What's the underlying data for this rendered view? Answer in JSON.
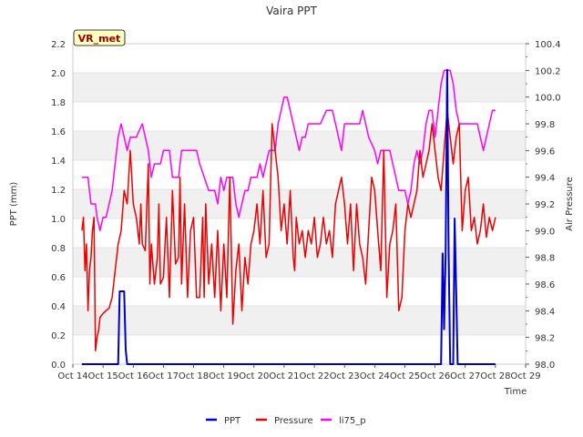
{
  "chart_data": {
    "type": "line",
    "title": "Vaira PPT",
    "badge": "VR_met",
    "xlabel": "Time",
    "ylabel_left": "PPT (mm)",
    "ylabel_right": "Air Pressure",
    "x_ticks": [
      "Oct 14",
      "Oct 15",
      "Oct 16",
      "Oct 17",
      "Oct 18",
      "Oct 19",
      "Oct 20",
      "Oct 21",
      "Oct 22",
      "Oct 23",
      "Oct 24",
      "Oct 25",
      "Oct 26",
      "Oct 27",
      "Oct 28",
      "Oct 29"
    ],
    "x_range_days": [
      0,
      15
    ],
    "left_ylim": [
      0.0,
      2.2
    ],
    "left_ticks": [
      "0.0",
      "0.2",
      "0.4",
      "0.6",
      "0.8",
      "1.0",
      "1.2",
      "1.4",
      "1.6",
      "1.8",
      "2.0",
      "2.2"
    ],
    "right_ylim": [
      98.0,
      100.4
    ],
    "right_ticks": [
      "98.0",
      "98.2",
      "98.4",
      "98.6",
      "98.8",
      "99.0",
      "99.2",
      "99.4",
      "99.6",
      "99.8",
      "100.0",
      "100.2",
      "100.4"
    ],
    "legend": [
      "PPT",
      "Pressure",
      "li75_p"
    ],
    "colors": {
      "PPT": "#0000cc",
      "Pressure": "#ee0000",
      "li75_p": "#ff00ff",
      "band": "#f0f0f0",
      "grid": "#dddddd",
      "badge_fill": "#ffffc0",
      "badge_text": "#990000"
    },
    "series": [
      {
        "name": "PPT",
        "axis": "left",
        "x": [
          0.3,
          1.5,
          1.55,
          1.6,
          1.65,
          1.7,
          1.75,
          1.8,
          12.2,
          12.25,
          12.3,
          12.35,
          12.4,
          12.45,
          12.5,
          12.6,
          12.65,
          12.7,
          12.75,
          14.0
        ],
        "values": [
          0,
          0,
          0.5,
          0.5,
          0.5,
          0.5,
          0.1,
          0,
          0,
          0.76,
          0.24,
          0.76,
          2.02,
          0.76,
          0,
          0,
          1.0,
          0.5,
          0,
          0
        ]
      },
      {
        "name": "Pressure",
        "axis": "right",
        "x": [
          0.3,
          0.35,
          0.4,
          0.45,
          0.5,
          0.55,
          0.6,
          0.65,
          0.7,
          0.75,
          0.8,
          0.85,
          0.9,
          1.0,
          1.1,
          1.2,
          1.3,
          1.4,
          1.5,
          1.55,
          1.6,
          1.7,
          1.8,
          1.9,
          2.0,
          2.1,
          2.2,
          2.25,
          2.3,
          2.4,
          2.5,
          2.55,
          2.6,
          2.7,
          2.8,
          2.85,
          2.9,
          3.0,
          3.1,
          3.2,
          3.3,
          3.4,
          3.5,
          3.55,
          3.6,
          3.7,
          3.8,
          3.9,
          4.0,
          4.1,
          4.2,
          4.3,
          4.35,
          4.4,
          4.5,
          4.6,
          4.7,
          4.8,
          4.9,
          5.0,
          5.1,
          5.2,
          5.3,
          5.4,
          5.5,
          5.6,
          5.7,
          5.8,
          5.9,
          6.0,
          6.1,
          6.2,
          6.3,
          6.4,
          6.5,
          6.6,
          6.7,
          6.8,
          6.9,
          7.0,
          7.1,
          7.2,
          7.3,
          7.35,
          7.4,
          7.5,
          7.6,
          7.7,
          7.8,
          7.9,
          8.0,
          8.1,
          8.2,
          8.3,
          8.4,
          8.5,
          8.6,
          8.7,
          8.8,
          8.9,
          9.0,
          9.1,
          9.2,
          9.3,
          9.4,
          9.5,
          9.6,
          9.7,
          9.8,
          9.9,
          10.0,
          10.1,
          10.2,
          10.3,
          10.4,
          10.5,
          10.6,
          10.7,
          10.8,
          10.9,
          11.0,
          11.1,
          11.2,
          11.3,
          11.4,
          11.5,
          11.6,
          11.7,
          11.8,
          11.9,
          12.0,
          12.1,
          12.2,
          12.3,
          12.4,
          12.5,
          12.6,
          12.7,
          12.8,
          12.9,
          13.0,
          13.1,
          13.2,
          13.3,
          13.4,
          13.5,
          13.6,
          13.7,
          13.8,
          13.9,
          14.0
        ],
        "values": [
          99.0,
          99.1,
          98.7,
          98.9,
          98.4,
          98.7,
          98.8,
          99.0,
          99.1,
          98.1,
          98.2,
          98.25,
          98.35,
          98.38,
          98.4,
          98.42,
          98.5,
          98.7,
          98.9,
          98.95,
          99.0,
          99.3,
          99.2,
          99.6,
          99.2,
          99.1,
          98.9,
          99.2,
          98.9,
          98.85,
          99.5,
          98.6,
          98.9,
          98.6,
          98.8,
          99.2,
          98.6,
          98.65,
          99.1,
          98.5,
          99.3,
          98.75,
          98.8,
          99.4,
          98.6,
          99.2,
          98.5,
          99.0,
          99.1,
          98.5,
          98.5,
          99.1,
          98.5,
          99.2,
          98.6,
          98.9,
          98.5,
          99.0,
          98.4,
          98.9,
          98.5,
          99.4,
          98.3,
          98.7,
          98.9,
          98.4,
          98.8,
          98.6,
          98.9,
          99.0,
          99.2,
          98.9,
          99.3,
          98.8,
          98.9,
          99.8,
          99.6,
          99.4,
          99.0,
          99.2,
          98.9,
          99.3,
          98.8,
          98.7,
          99.1,
          98.9,
          99.0,
          98.8,
          99.0,
          98.9,
          99.1,
          98.8,
          98.9,
          99.1,
          98.9,
          99.0,
          98.8,
          99.2,
          99.3,
          99.4,
          99.2,
          98.9,
          99.2,
          98.7,
          99.2,
          98.9,
          98.8,
          98.6,
          99.0,
          99.4,
          99.3,
          99.0,
          98.7,
          99.6,
          98.5,
          98.9,
          99.0,
          99.2,
          98.4,
          98.5,
          99.0,
          99.2,
          99.1,
          99.2,
          99.3,
          99.6,
          99.4,
          99.5,
          99.6,
          99.8,
          99.6,
          99.4,
          99.3,
          99.6,
          99.9,
          99.7,
          99.5,
          99.7,
          99.8,
          99.0,
          99.3,
          99.4,
          99.0,
          99.1,
          98.9,
          99.0,
          99.2,
          98.95,
          99.1,
          99.0,
          99.1
        ],
        "note": "Values read approximately from the noisy trace."
      },
      {
        "name": "li75_p",
        "axis": "right",
        "x": [
          0.3,
          0.5,
          0.55,
          0.6,
          0.75,
          0.8,
          0.9,
          1.0,
          1.1,
          1.2,
          1.3,
          1.4,
          1.5,
          1.6,
          1.7,
          1.8,
          1.9,
          2.0,
          2.05,
          2.1,
          2.3,
          2.5,
          2.6,
          2.7,
          2.8,
          2.9,
          3.0,
          3.2,
          3.3,
          3.5,
          3.6,
          3.8,
          3.9,
          4.0,
          4.1,
          4.2,
          4.5,
          4.7,
          4.8,
          4.9,
          5.0,
          5.1,
          5.2,
          5.3,
          5.4,
          5.5,
          5.6,
          5.7,
          5.8,
          5.9,
          6.0,
          6.1,
          6.2,
          6.3,
          6.5,
          6.7,
          6.8,
          6.9,
          7.0,
          7.1,
          7.2,
          7.3,
          7.4,
          7.5,
          7.6,
          7.7,
          7.8,
          7.9,
          8.0,
          8.2,
          8.4,
          8.6,
          8.7,
          8.8,
          8.9,
          9.0,
          9.2,
          9.5,
          9.6,
          9.7,
          9.8,
          10.0,
          10.1,
          10.2,
          10.3,
          10.5,
          10.6,
          10.7,
          10.8,
          11.0,
          11.1,
          11.2,
          11.3,
          11.4,
          11.5,
          11.6,
          11.7,
          11.8,
          11.9,
          12.0,
          12.1,
          12.2,
          12.3,
          12.4,
          12.5,
          12.6,
          12.7,
          12.8,
          12.9,
          13.0,
          13.1,
          13.2,
          13.3,
          13.4,
          13.5,
          13.6,
          13.7,
          13.8,
          13.9,
          14.0
        ],
        "values": [
          99.4,
          99.4,
          99.3,
          99.2,
          99.2,
          99.1,
          99.0,
          99.1,
          99.1,
          99.2,
          99.3,
          99.5,
          99.7,
          99.8,
          99.7,
          99.6,
          99.7,
          99.7,
          99.7,
          99.7,
          99.8,
          99.6,
          99.4,
          99.5,
          99.5,
          99.5,
          99.6,
          99.6,
          99.4,
          99.4,
          99.6,
          99.6,
          99.6,
          99.6,
          99.6,
          99.5,
          99.3,
          99.3,
          99.2,
          99.4,
          99.3,
          99.4,
          99.4,
          99.4,
          99.2,
          99.1,
          99.2,
          99.3,
          99.3,
          99.4,
          99.4,
          99.4,
          99.5,
          99.4,
          99.6,
          99.6,
          99.8,
          99.9,
          100.0,
          100.0,
          99.9,
          99.8,
          99.7,
          99.6,
          99.7,
          99.7,
          99.8,
          99.8,
          99.8,
          99.8,
          99.9,
          99.9,
          99.8,
          99.7,
          99.6,
          99.8,
          99.8,
          99.8,
          99.9,
          99.8,
          99.7,
          99.6,
          99.5,
          99.6,
          99.6,
          99.6,
          99.5,
          99.4,
          99.3,
          99.3,
          99.2,
          99.3,
          99.5,
          99.6,
          99.5,
          99.6,
          99.8,
          99.9,
          99.9,
          99.7,
          99.9,
          100.1,
          100.2,
          100.2,
          100.2,
          100.1,
          99.9,
          99.8,
          99.8,
          99.8,
          99.8,
          99.8,
          99.8,
          99.8,
          99.7,
          99.6,
          99.7,
          99.8,
          99.9,
          99.9
        ],
        "note": "Values read approximately from the stepped trace."
      }
    ]
  }
}
